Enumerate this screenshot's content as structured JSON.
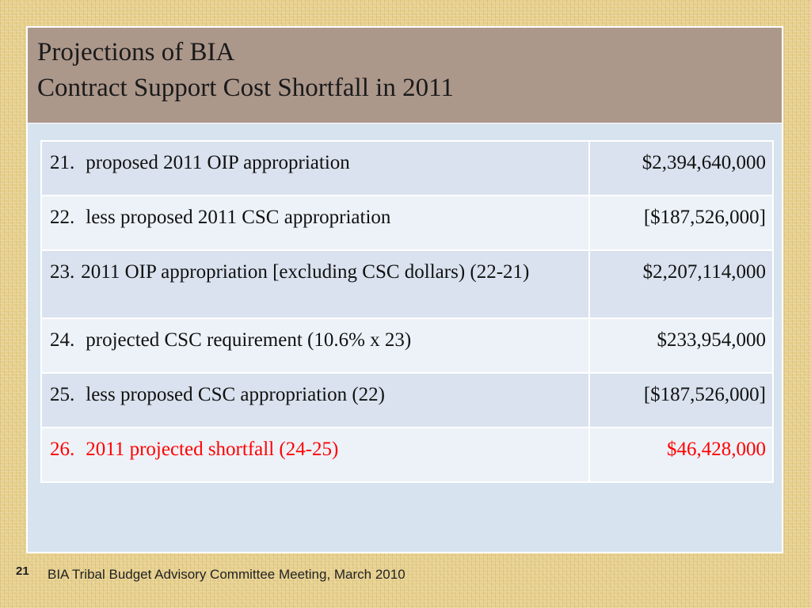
{
  "slide": {
    "title_line1": "Projections of BIA",
    "title_line2": "Contract Support Cost Shortfall in 2011",
    "slide_number": "21",
    "footer": "BIA Tribal Budget Advisory Committee Meeting, March 2010",
    "highlight_color": "#ff0000"
  },
  "table": {
    "rows": [
      {
        "number": "21.",
        "description": "proposed 2011 OIP appropriation",
        "amount": "$2,394,640,000"
      },
      {
        "number": "22.",
        "description": "less proposed 2011 CSC appropriation",
        "amount": "[$187,526,000]"
      },
      {
        "number": "23.",
        "description": "2011 OIP appropriation [excluding CSC dollars) (22-21)",
        "amount": "$2,207,114,000"
      },
      {
        "number": "24.",
        "description": "projected CSC requirement (10.6% x 23)",
        "amount": "$233,954,000"
      },
      {
        "number": "25.",
        "description": "less proposed CSC appropriation (22)",
        "amount": "[$187,526,000]"
      },
      {
        "number": "26.",
        "description": "2011 projected shortfall (24-25)",
        "amount": "$46,428,000",
        "highlighted": true
      }
    ]
  }
}
